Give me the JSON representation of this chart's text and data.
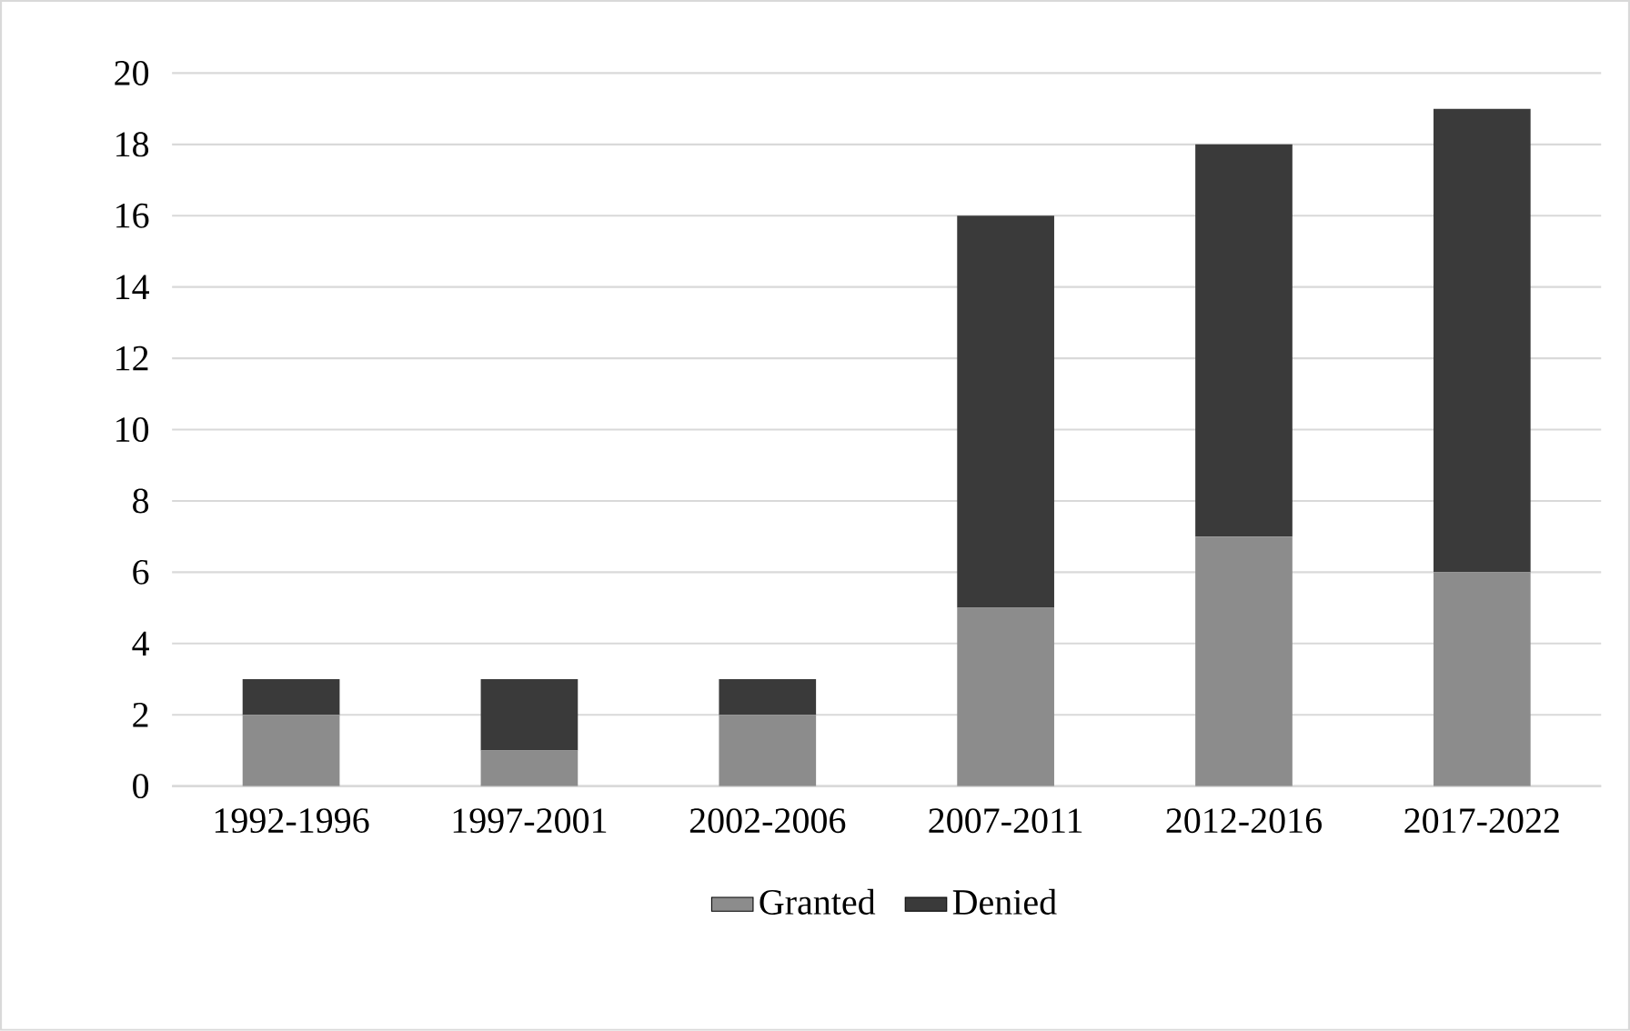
{
  "chart_data": {
    "type": "bar",
    "stacked": true,
    "categories": [
      "1992-1996",
      "1997-2001",
      "2002-2006",
      "2007-2011",
      "2012-2016",
      "2017-2022"
    ],
    "series": [
      {
        "name": "Granted",
        "color": "#8c8c8c",
        "values": [
          2,
          1,
          2,
          5,
          7,
          6
        ]
      },
      {
        "name": "Denied",
        "color": "#3a3a3a",
        "values": [
          1,
          2,
          1,
          11,
          11,
          13
        ]
      }
    ],
    "ylim": [
      0,
      20
    ],
    "yticks": [
      0,
      2,
      4,
      6,
      8,
      10,
      12,
      14,
      16,
      18,
      20
    ],
    "grid": "y",
    "legend": "bottom"
  }
}
